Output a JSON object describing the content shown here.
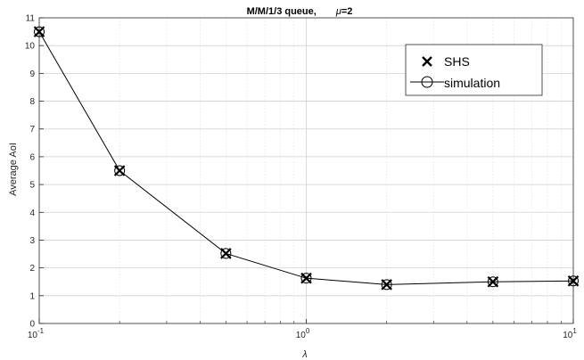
{
  "chart_data": {
    "type": "line",
    "title_main": "M/M/1/3 queue,",
    "title_mu_symbol": "μ",
    "title_mu_value": "=2",
    "xlabel": "λ",
    "ylabel": "Average AoI",
    "x_scale": "log",
    "xlim": [
      0.1,
      10
    ],
    "ylim": [
      0,
      11
    ],
    "grid": true,
    "legend_position": "top-right",
    "y_ticks": [
      "0",
      "1",
      "2",
      "3",
      "4",
      "5",
      "6",
      "7",
      "8",
      "9",
      "10",
      "11"
    ],
    "x_ticks": [
      {
        "base": "10",
        "exp": "-1"
      },
      {
        "base": "10",
        "exp": "0"
      },
      {
        "base": "10",
        "exp": "1"
      }
    ],
    "x": [
      0.1,
      0.2,
      0.5,
      1,
      2,
      5,
      10
    ],
    "series": [
      {
        "name": "SHS",
        "marker": "x",
        "line": false,
        "values": [
          10.5,
          5.5,
          2.52,
          1.63,
          1.4,
          1.5,
          1.53
        ]
      },
      {
        "name": "simulation",
        "marker": "o",
        "line": true,
        "values": [
          10.5,
          5.5,
          2.52,
          1.63,
          1.4,
          1.5,
          1.53
        ]
      }
    ]
  }
}
